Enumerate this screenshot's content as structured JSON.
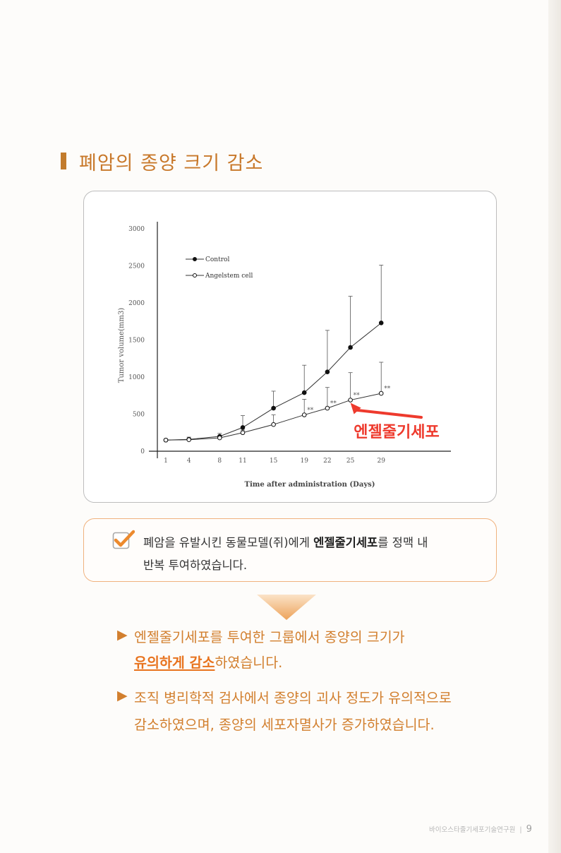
{
  "section": {
    "title": "폐암의 종양 크기 감소"
  },
  "chart_data": {
    "type": "line",
    "x": [
      1,
      4,
      8,
      11,
      15,
      19,
      22,
      25,
      29
    ],
    "x_tick_labels": [
      "1",
      "4",
      "8",
      "11",
      "15",
      "19",
      "22",
      "25",
      "29"
    ],
    "y_ticks": [
      "0",
      "500",
      "1000",
      "1500",
      "2000",
      "2500",
      "3000"
    ],
    "ylim": [
      0,
      3000
    ],
    "xlabel": "Time after administration (Days)",
    "ylabel": "Tumor volume(mm3)",
    "series": [
      {
        "name": "Control",
        "marker": "filled",
        "values": [
          150,
          160,
          200,
          320,
          580,
          790,
          1070,
          1400,
          1730
        ],
        "error_upper": [
          150,
          190,
          240,
          480,
          810,
          1160,
          1630,
          2090,
          2510
        ]
      },
      {
        "name": "Angelstem cell",
        "marker": "open",
        "values": [
          150,
          155,
          180,
          250,
          360,
          490,
          580,
          690,
          780
        ],
        "error_upper": [
          150,
          175,
          205,
          285,
          490,
          700,
          860,
          1060,
          1200
        ]
      }
    ],
    "significance": [
      {
        "x": 19,
        "label": "**"
      },
      {
        "x": 22,
        "label": "**"
      },
      {
        "x": 25,
        "label": "**"
      },
      {
        "x": 29,
        "label": "**"
      }
    ],
    "annotation": {
      "text": "엔젤줄기세포",
      "color": "#ee3a2d"
    },
    "legend_position": "top-left"
  },
  "note": {
    "line1_pre": "폐암을 유발시킨 동물모델(쥐)에게 ",
    "line1_bold": "엔젤줄기세포",
    "line1_post": "를 정맥 내",
    "line2": "반복 투여하였습니다."
  },
  "bullets": [
    {
      "marker": "▶",
      "line1": "엔젤줄기세포를 투여한 그룹에서 종양의 크기가",
      "line2_highlight": "유의하게 감소",
      "line2_rest": "하였습니다."
    },
    {
      "marker": "▶",
      "line1": "조직 병리학적 검사에서 종양의 괴사 정도가 유의적으로",
      "line2": "감소하였으며, 종양의 세포자멸사가 증가하였습니다."
    }
  ],
  "footer": {
    "text": "바이오스타줄기세포기술연구원",
    "separator": "|",
    "page": "9"
  },
  "colors": {
    "accent": "#c8782a",
    "bullet": "#d27f2e",
    "highlight": "#e8731e",
    "red": "#ee3a2d"
  }
}
